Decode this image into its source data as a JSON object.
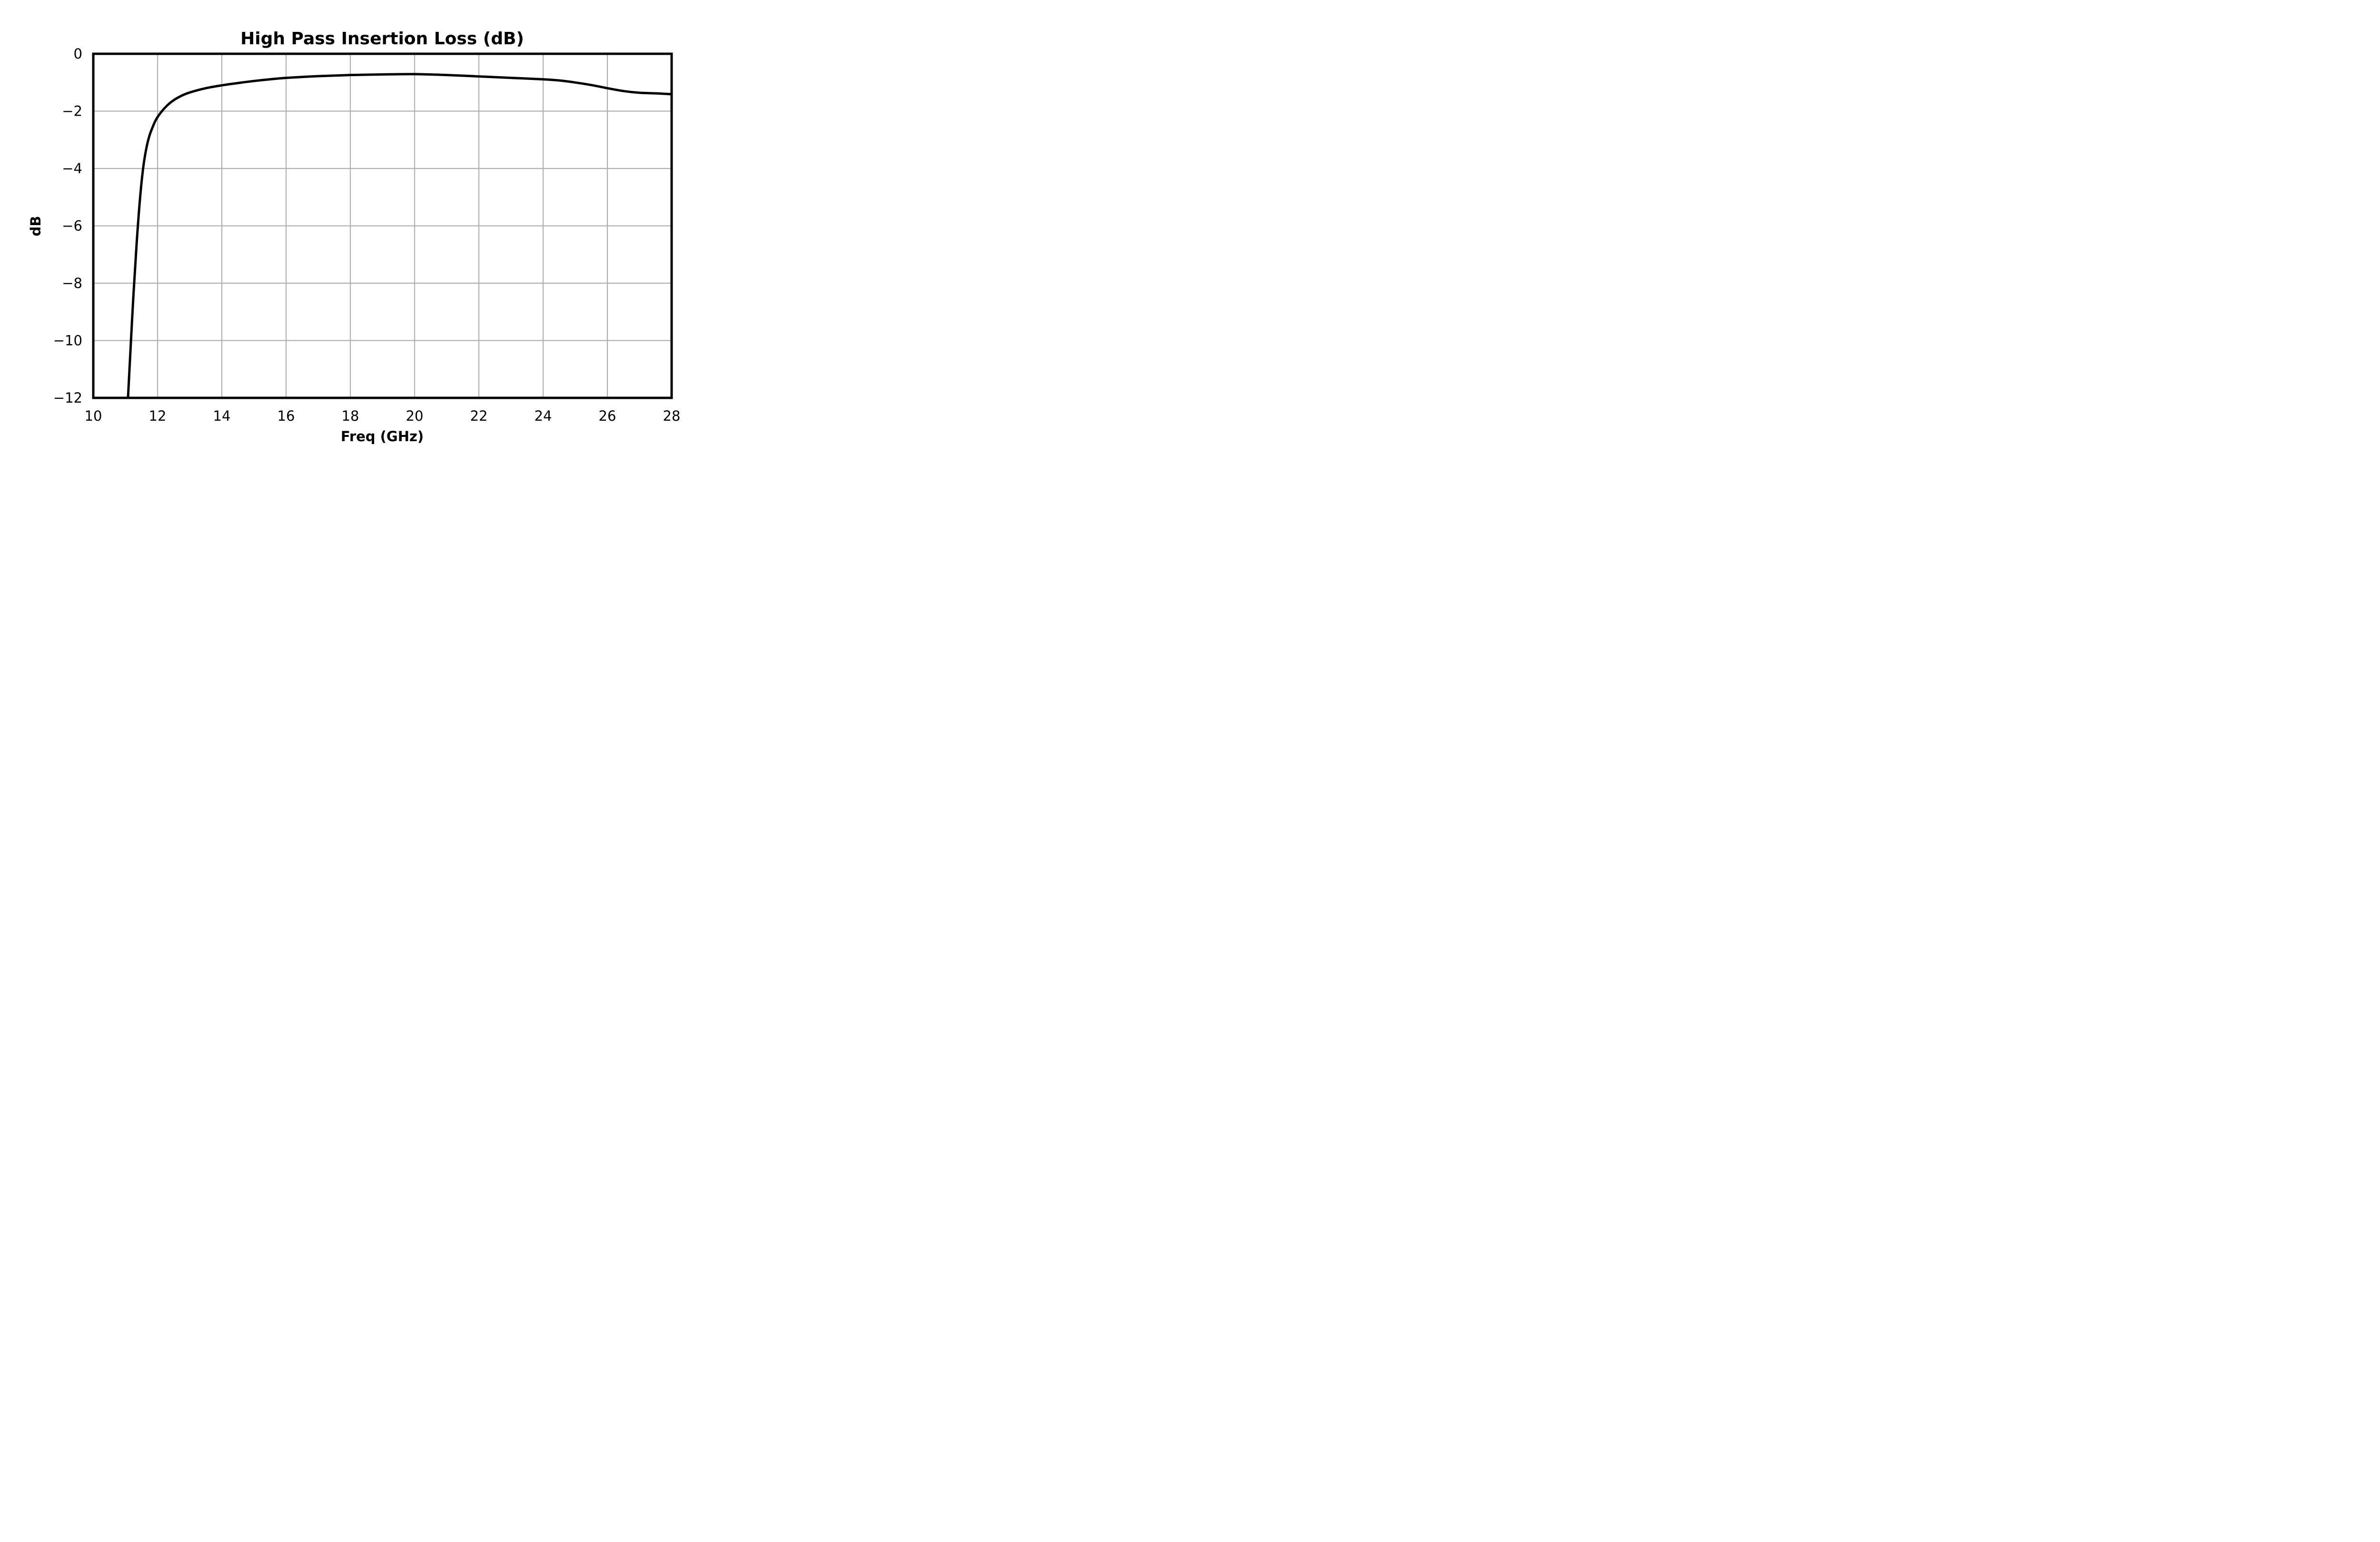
{
  "chart_data": {
    "type": "line",
    "title": "High Pass Insertion Loss (dB)",
    "xlabel": "Freq (GHz)",
    "ylabel": "dB",
    "xlim": [
      10,
      28
    ],
    "ylim": [
      -12,
      0
    ],
    "xticks": [
      10,
      12,
      14,
      16,
      18,
      20,
      22,
      24,
      26,
      28
    ],
    "yticks": [
      0,
      -2,
      -4,
      -6,
      -8,
      -10,
      -12
    ],
    "xtick_labels": [
      "10",
      "12",
      "14",
      "16",
      "18",
      "20",
      "22",
      "24",
      "26",
      "28"
    ],
    "ytick_labels": [
      "0",
      "−2",
      "−4",
      "−6",
      "−8",
      "−10",
      "−12"
    ],
    "grid": true,
    "line_color": "#000000",
    "grid_color": "#b0b0b0",
    "series": [
      {
        "x": [
          11.08,
          11.15,
          11.25,
          11.35,
          11.45,
          11.55,
          11.65,
          11.75,
          11.85,
          11.95,
          12.1,
          12.3,
          12.5,
          12.75,
          13.0,
          13.5,
          14.0,
          14.5,
          15.0,
          15.5,
          16.0,
          17.0,
          18.0,
          19.0,
          20.0,
          21.0,
          22.0,
          23.0,
          24.0,
          24.5,
          25.0,
          25.5,
          26.0,
          26.5,
          27.0,
          27.5,
          28.0
        ],
        "y": [
          -12.0,
          -10.5,
          -8.4,
          -6.6,
          -5.1,
          -4.0,
          -3.3,
          -2.85,
          -2.55,
          -2.3,
          -2.05,
          -1.8,
          -1.62,
          -1.46,
          -1.35,
          -1.2,
          -1.1,
          -1.02,
          -0.95,
          -0.89,
          -0.84,
          -0.78,
          -0.74,
          -0.72,
          -0.71,
          -0.74,
          -0.79,
          -0.84,
          -0.89,
          -0.93,
          -1.0,
          -1.09,
          -1.2,
          -1.3,
          -1.36,
          -1.38,
          -1.41
        ]
      }
    ]
  }
}
